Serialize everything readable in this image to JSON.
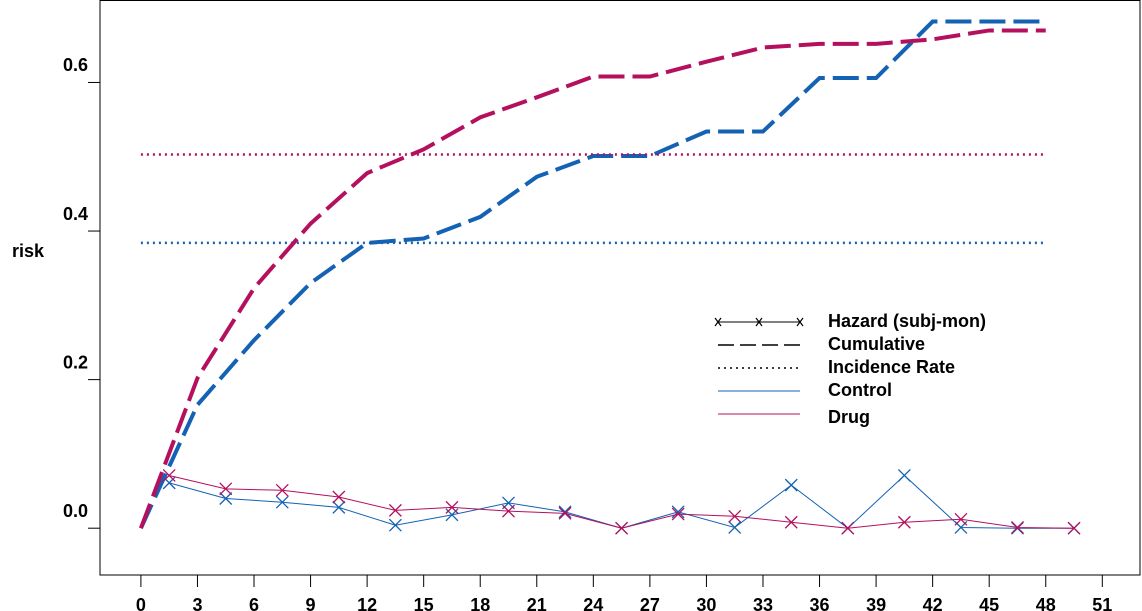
{
  "chart_data": {
    "type": "line",
    "y_label": "risk",
    "xlim": [
      -2.17,
      53.0
    ],
    "ylim": [
      -0.063,
      0.711
    ],
    "xticks": [
      0,
      3,
      6,
      9,
      12,
      15,
      18,
      21,
      24,
      27,
      30,
      33,
      36,
      39,
      42,
      45,
      48,
      51
    ],
    "yticks": [
      {
        "value": 0,
        "label": "0.0"
      },
      0.2,
      0.4,
      0.6
    ],
    "cumulative_x": [
      0,
      3,
      6,
      9,
      12,
      15,
      18,
      21,
      24,
      27,
      30,
      33,
      36,
      39,
      42,
      45,
      48
    ],
    "hazard_x": [
      1.5,
      4.5,
      7.5,
      10.5,
      13.5,
      16.5,
      19.5,
      22.5,
      25.5,
      28.5,
      31.5,
      34.5,
      37.5,
      40.5,
      43.5,
      46.5,
      49.5
    ],
    "series": [
      {
        "name": "Control",
        "color": "#1462b4",
        "cumulative": [
          0,
          0.166,
          0.253,
          0.33,
          0.384,
          0.39,
          0.419,
          0.473,
          0.501,
          0.501,
          0.534,
          0.534,
          0.606,
          0.606,
          0.682,
          0.682,
          0.682
        ],
        "hazard": [
          0.061,
          0.04,
          0.035,
          0.028,
          0.004,
          0.018,
          0.034,
          0.022,
          0,
          0.022,
          0.001,
          0.058,
          0,
          0.071,
          0.001,
          0,
          0
        ],
        "incidence_rate": 0.384
      },
      {
        "name": "Drug",
        "color": "#b4105e",
        "cumulative": [
          0,
          0.202,
          0.323,
          0.41,
          0.478,
          0.51,
          0.553,
          0.58,
          0.608,
          0.608,
          0.628,
          0.647,
          0.652,
          0.652,
          0.658,
          0.67,
          0.67
        ],
        "hazard": [
          0.071,
          0.053,
          0.051,
          0.042,
          0.024,
          0.028,
          0.023,
          0.02,
          0,
          0.019,
          0.016,
          0.008,
          0,
          0.008,
          0.012,
          0.001,
          0
        ],
        "incidence_rate": 0.503
      }
    ],
    "legend": [
      "Hazard (subj-mon)",
      "Cumulative",
      "Incidence Rate",
      "Control",
      "Drug"
    ],
    "grid": false
  }
}
